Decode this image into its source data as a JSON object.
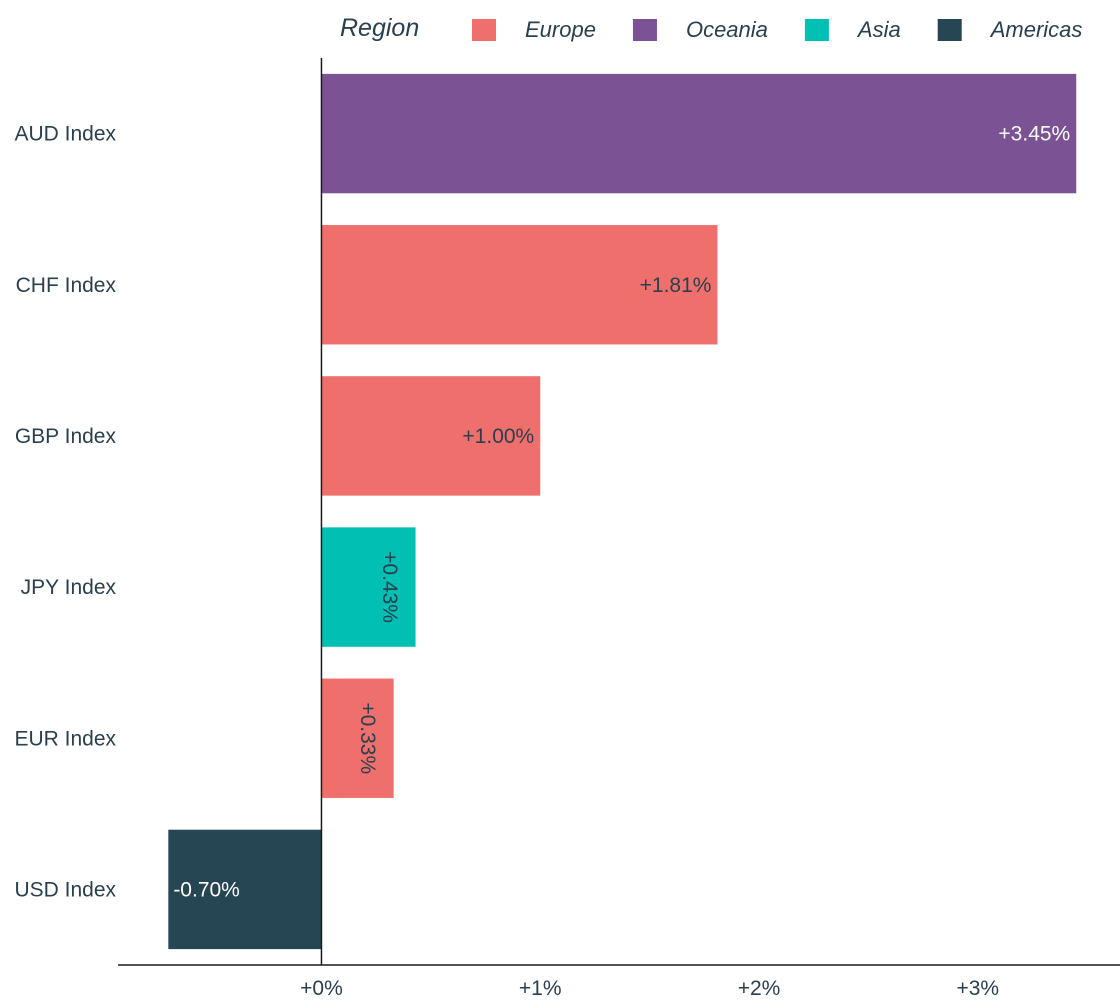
{
  "chart_data": {
    "type": "bar",
    "orientation": "horizontal",
    "title": "",
    "xlabel": "",
    "ylabel": "",
    "xlim": [
      -0.93,
      3.65
    ],
    "x_ticks": [
      0,
      1,
      2,
      3
    ],
    "x_tick_labels": [
      "+0%",
      "+1%",
      "+2%",
      "+3%"
    ],
    "grid": false,
    "legend": {
      "title": "Region",
      "position": "top",
      "entries": [
        {
          "name": "Europe",
          "color": "#ef6f6c"
        },
        {
          "name": "Oceania",
          "color": "#7b5394"
        },
        {
          "name": "Asia",
          "color": "#00bfb3"
        },
        {
          "name": "Americas",
          "color": "#264653"
        }
      ]
    },
    "categories": [
      "AUD Index",
      "CHF Index",
      "GBP Index",
      "JPY Index",
      "EUR Index",
      "USD Index"
    ],
    "values": [
      3.45,
      1.81,
      1.0,
      0.43,
      0.33,
      -0.7
    ],
    "value_labels": [
      "+3.45%",
      "+1.81%",
      "+1.00%",
      "+0.43%",
      "+0.33%",
      "-0.70%"
    ],
    "regions": [
      "Oceania",
      "Europe",
      "Europe",
      "Asia",
      "Europe",
      "Americas"
    ],
    "label_colors": [
      "#ffffff",
      "#2a3f4f",
      "#2a3f4f",
      "#2a3f4f",
      "#2a3f4f",
      "#ffffff"
    ],
    "label_rotated": [
      false,
      false,
      false,
      true,
      true,
      false
    ]
  }
}
